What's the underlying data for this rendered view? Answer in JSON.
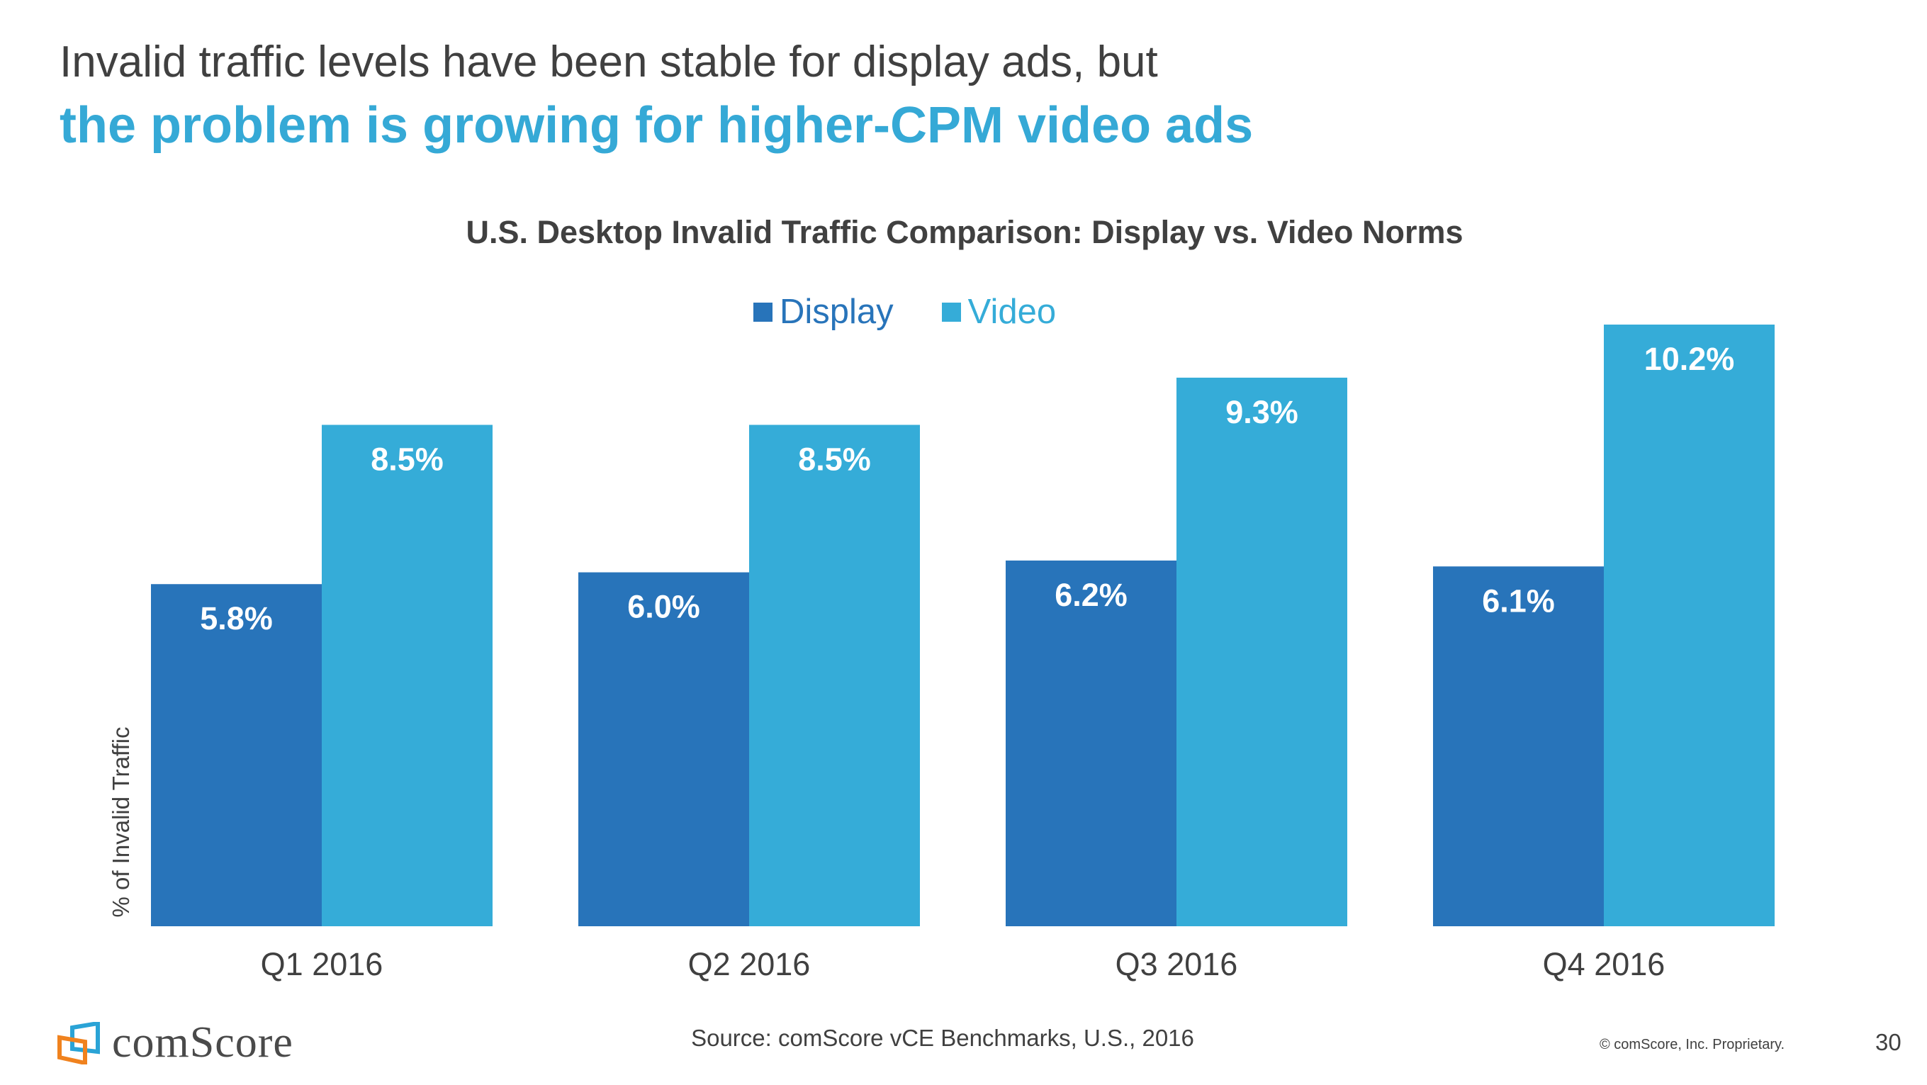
{
  "header": {
    "line1": "Invalid traffic levels have been stable for display ads, but",
    "line2": "the problem is growing for higher-CPM video ads"
  },
  "chart_data": {
    "type": "bar",
    "title": "U.S. Desktop Invalid Traffic Comparison: Display vs. Video Norms",
    "ylabel": "% of Invalid Traffic",
    "xlabel": "",
    "categories": [
      "Q1 2016",
      "Q2 2016",
      "Q3 2016",
      "Q4 2016"
    ],
    "series": [
      {
        "name": "Display",
        "values": [
          5.8,
          6.0,
          6.2,
          6.1
        ],
        "labels": [
          "5.8%",
          "6.0%",
          "6.2%",
          "6.1%"
        ],
        "color": "#2874BA"
      },
      {
        "name": "Video",
        "values": [
          8.5,
          8.5,
          9.3,
          10.2
        ],
        "labels": [
          "8.5%",
          "8.5%",
          "9.3%",
          "10.2%"
        ],
        "color": "#35ACD8"
      }
    ],
    "ylim": [
      0,
      10.2
    ],
    "grid": false,
    "legend": "top-center",
    "data_label_color": "#FFFFFF"
  },
  "footer": {
    "source": "Source: comScore vCE Benchmarks, U.S., 2016",
    "copyright": "© comScore, Inc. Proprietary.",
    "page_number": "30",
    "logo_text": "comScore"
  }
}
